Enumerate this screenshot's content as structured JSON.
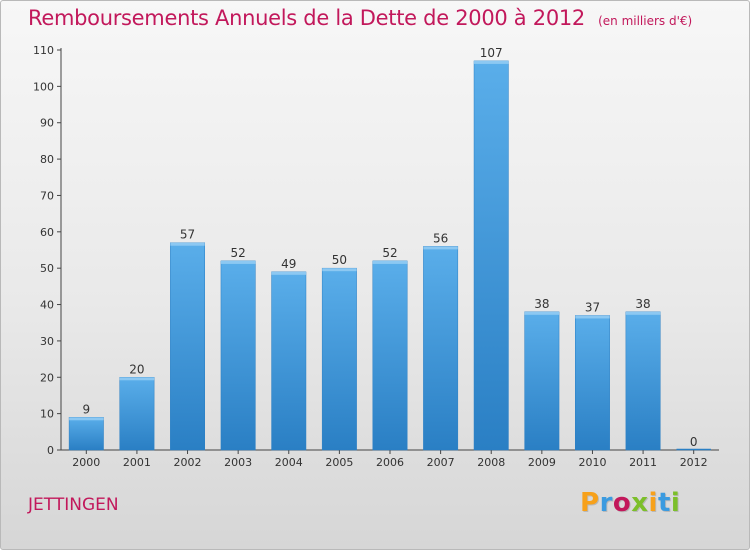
{
  "title": "Remboursements Annuels de la Dette de 2000 à 2012",
  "unit": "(en milliers d'€)",
  "commune": "JETTINGEN",
  "brand": {
    "text": "Proxiti",
    "colors": [
      "#f7a11a",
      "#3b9be0",
      "#c2185b",
      "#7cbf2a",
      "#f7a11a",
      "#3b9be0",
      "#7cbf2a"
    ]
  },
  "colors": {
    "bar_top": "#5aaeea",
    "bar_bottom": "#2a7fc4",
    "title": "#c2185b"
  },
  "chart_data": {
    "type": "bar",
    "categories": [
      "2000",
      "2001",
      "2002",
      "2003",
      "2004",
      "2005",
      "2006",
      "2007",
      "2008",
      "2009",
      "2010",
      "2011",
      "2012"
    ],
    "values": [
      9,
      20,
      57,
      52,
      49,
      50,
      52,
      56,
      107,
      38,
      37,
      38,
      0
    ],
    "ylim": [
      0,
      110
    ],
    "yticks": [
      0,
      10,
      20,
      30,
      40,
      50,
      60,
      70,
      80,
      90,
      100,
      110
    ],
    "grid": false,
    "xlabel": "",
    "ylabel": ""
  }
}
